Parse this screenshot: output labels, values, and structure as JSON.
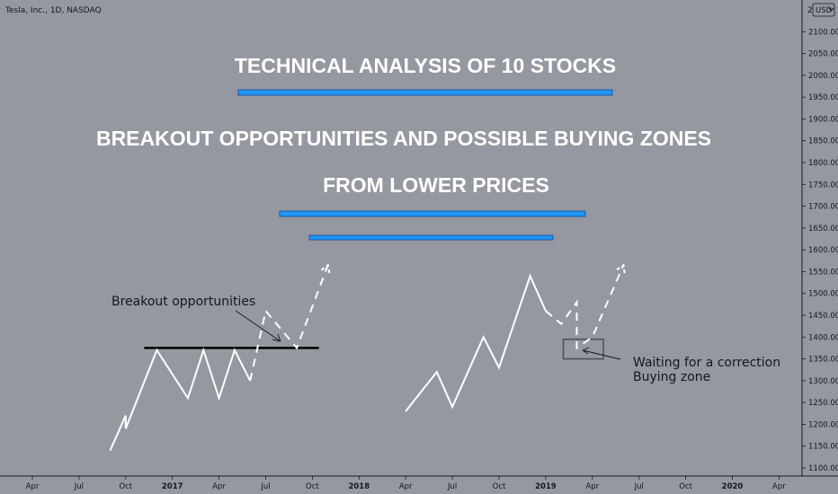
{
  "header": {
    "symbol": "Tesla, Inc., 1D, NASDAQ",
    "price_scale_mode": "2",
    "currency_badge": "USD",
    "currency_menu_icon": "chevron-down-icon"
  },
  "colors": {
    "background": "#9598a1",
    "axis_text": "#131722",
    "white_text": "#ffffff",
    "accent_bar": "#2196f3",
    "accent_bar_border": "#0d47a1",
    "resistance_line": "#000000",
    "price_path": "#ffffff",
    "box": "#50535e"
  },
  "overlay": {
    "title": "TECHNICAL ANALYSIS OF 10 STOCKS",
    "subtitle_line1": "BREAKOUT OPPORTUNITIES AND POSSIBLE BUYING ZONES",
    "subtitle_line2": "FROM LOWER PRICES",
    "label_breakout": "Breakout opportunities",
    "label_waiting": "Waiting for a correction",
    "label_buying": "Buying zone"
  },
  "chart_data": {
    "type": "line",
    "ylim": [
      1100,
      2150
    ],
    "x_ticks": [
      "Apr",
      "Jul",
      "Oct",
      "2017",
      "Apr",
      "Jul",
      "Oct",
      "2018",
      "Apr",
      "Jul",
      "Oct",
      "2019",
      "Apr",
      "Jul",
      "Oct",
      "2020",
      "Apr"
    ],
    "y_ticks": [
      "2100.00",
      "2050.00",
      "2000.00",
      "1950.00",
      "1900.00",
      "1850.00",
      "1800.00",
      "1750.00",
      "1700.00",
      "1650.00",
      "1600.00",
      "1550.00",
      "1500.00",
      "1450.00",
      "1400.00",
      "1350.00",
      "1300.00",
      "1250.00",
      "1200.00",
      "1150.00",
      "1100.00"
    ],
    "resistance_level": 1375,
    "series": [
      {
        "style": "solid",
        "points": [
          [
            "Sep 2016",
            1140
          ],
          [
            "Oct 2016",
            1220
          ],
          [
            "Oct 2016",
            1190
          ],
          [
            "Dec 2016",
            1370
          ],
          [
            "Feb 2017",
            1260
          ],
          [
            "Mar 2017",
            1370
          ],
          [
            "Apr 2017",
            1260
          ],
          [
            "May 2017",
            1370
          ],
          [
            "Jun 2017",
            1300
          ]
        ]
      },
      {
        "style": "dashed",
        "points": [
          [
            "Jun 2017",
            1300
          ],
          [
            "Jul 2017",
            1460
          ],
          [
            "Sep 2017",
            1375
          ],
          [
            "Nov 2017",
            1565
          ]
        ]
      },
      {
        "style": "solid",
        "points": [
          [
            "Apr 2018",
            1230
          ],
          [
            "Jun 2018",
            1320
          ],
          [
            "Jul 2018",
            1240
          ],
          [
            "Sep 2018",
            1400
          ],
          [
            "Oct 2018",
            1330
          ],
          [
            "Dec 2018",
            1540
          ],
          [
            "Jan 2019",
            1460
          ]
        ]
      },
      {
        "style": "dashed",
        "points": [
          [
            "Jan 2019",
            1460
          ],
          [
            "Feb 2019",
            1430
          ],
          [
            "Mar 2019",
            1480
          ],
          [
            "Mar 2019",
            1375
          ],
          [
            "Apr 2019",
            1400
          ],
          [
            "Jun 2019",
            1565
          ]
        ]
      }
    ],
    "buying_zone": {
      "from": "Mar 2019",
      "to": "May 2019",
      "low": 1350,
      "high": 1395
    }
  }
}
